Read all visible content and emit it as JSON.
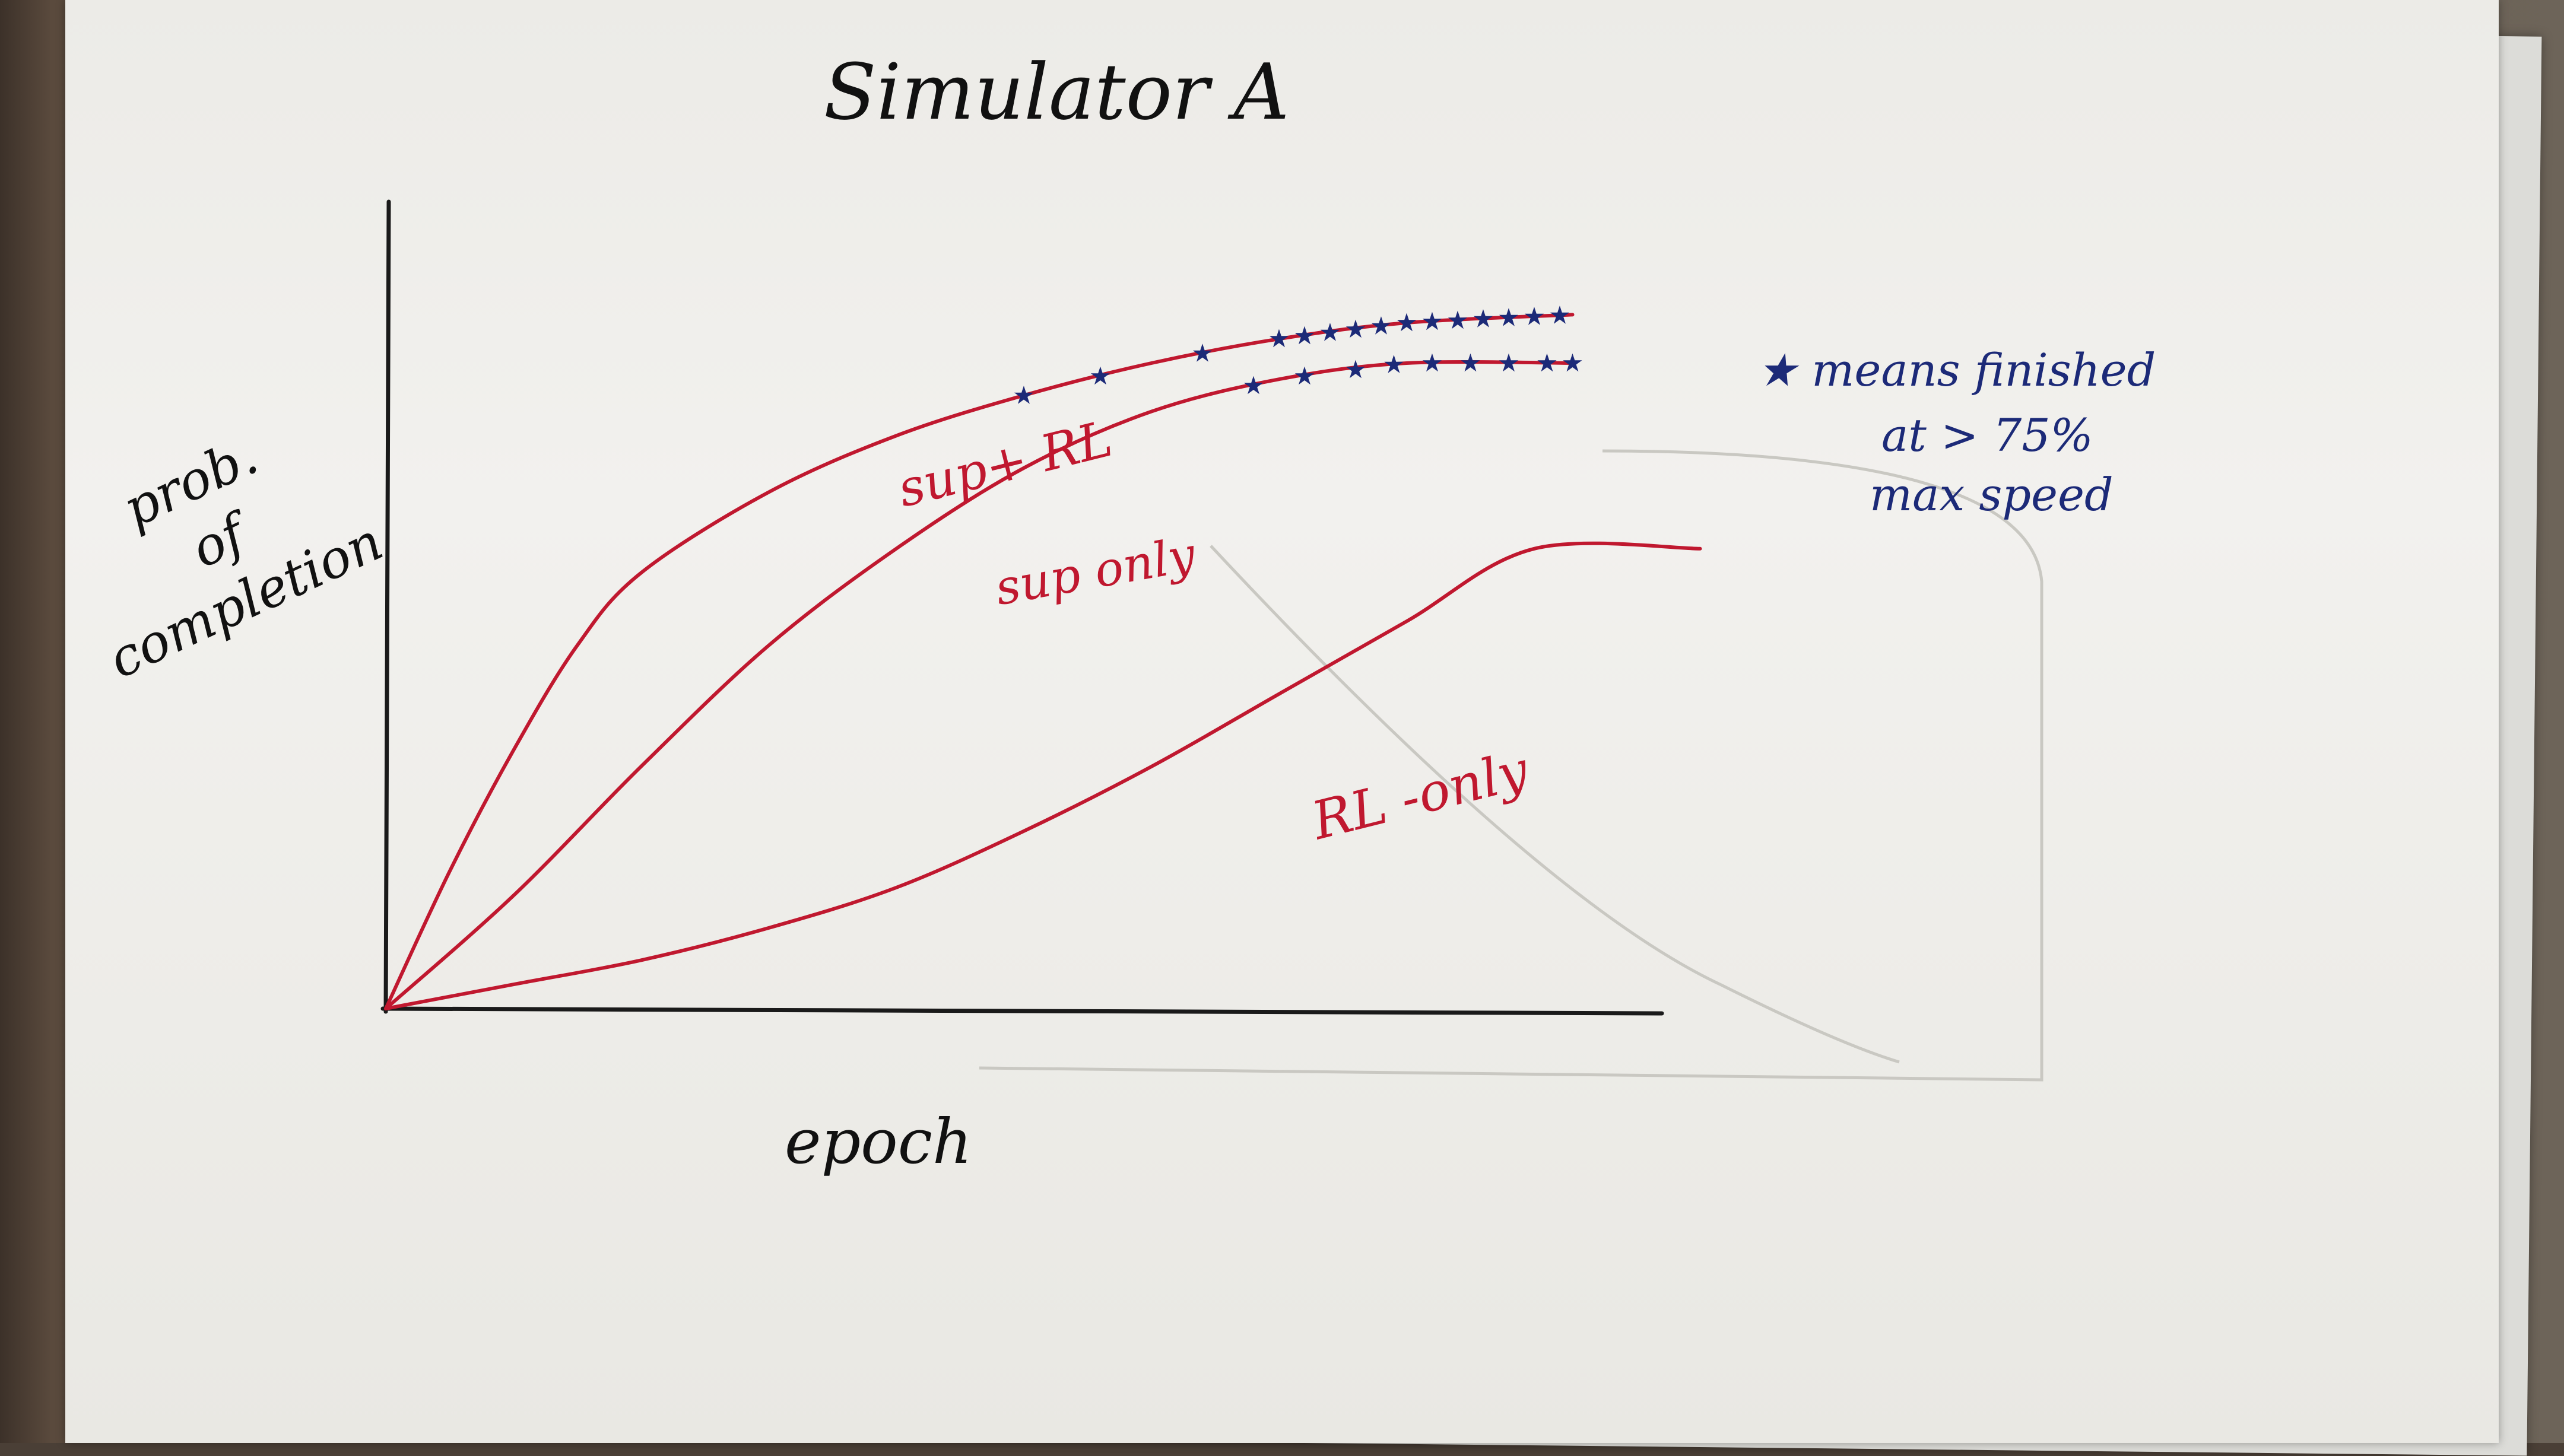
{
  "colors": {
    "axis": "#1a1a1a",
    "curve": "#c0182f",
    "marker": "#1c2a78",
    "ink": "#111111",
    "ghost": "#c9c8c2"
  },
  "chart_data": {
    "type": "line",
    "title": "Simulator A",
    "xlabel": "epoch",
    "ylabel": "prob. of completion",
    "xlim": [
      0,
      1
    ],
    "ylim": [
      0,
      1
    ],
    "grid": false,
    "legend": "none",
    "series": [
      {
        "name": "sup+ RL",
        "x": [
          0,
          0.05,
          0.1,
          0.15,
          0.2,
          0.3,
          0.4,
          0.5,
          0.6,
          0.7,
          0.8,
          0.93
        ],
        "y": [
          0,
          0.17,
          0.32,
          0.45,
          0.54,
          0.64,
          0.71,
          0.76,
          0.8,
          0.83,
          0.85,
          0.86
        ]
      },
      {
        "name": "sup only",
        "x": [
          0,
          0.1,
          0.2,
          0.3,
          0.4,
          0.5,
          0.6,
          0.7,
          0.8,
          0.93
        ],
        "y": [
          0,
          0.14,
          0.3,
          0.45,
          0.57,
          0.67,
          0.74,
          0.78,
          0.8,
          0.8
        ]
      },
      {
        "name": "RL -only",
        "x": [
          0,
          0.1,
          0.2,
          0.3,
          0.4,
          0.5,
          0.6,
          0.7,
          0.8,
          0.9,
          1.03
        ],
        "y": [
          0,
          0.03,
          0.06,
          0.1,
          0.15,
          0.22,
          0.3,
          0.39,
          0.48,
          0.57,
          0.57
        ]
      }
    ],
    "markers": [
      {
        "series": "sup+ RL",
        "x": [
          0.5,
          0.56,
          0.64,
          0.7,
          0.72,
          0.74,
          0.76,
          0.78,
          0.8,
          0.82,
          0.84,
          0.86,
          0.88,
          0.9,
          0.92
        ]
      },
      {
        "series": "sup only",
        "x": [
          0.68,
          0.72,
          0.76,
          0.79,
          0.82,
          0.85,
          0.88,
          0.91,
          0.93
        ]
      }
    ],
    "annotations": [
      {
        "id": "star_note",
        "lines": [
          "★ means finished",
          "at > 75%",
          "max speed"
        ]
      }
    ],
    "labels": {
      "sup_rl": "sup+ RL",
      "sup_only": "sup only",
      "rl_only": "RL -only"
    }
  }
}
